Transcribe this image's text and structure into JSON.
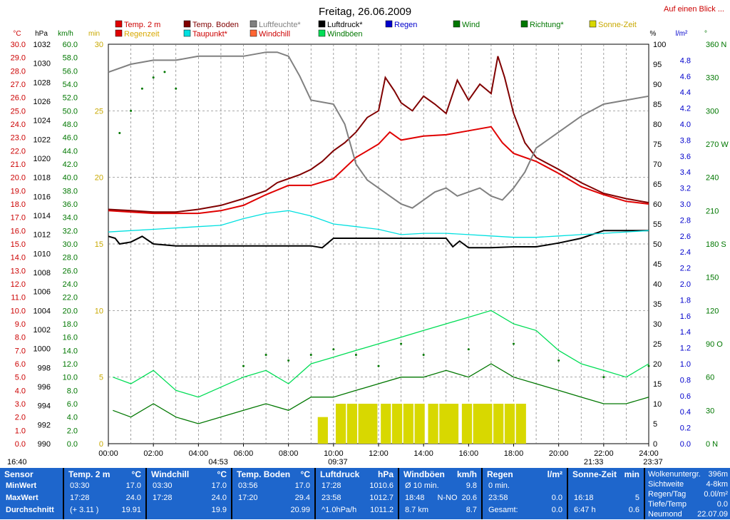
{
  "title": "Freitag, 26.06.2009",
  "link": "Auf einen Blick ...",
  "colors": {
    "temp": "#e00000",
    "boden": "#800000",
    "feuchte": "#808080",
    "druck": "#000000",
    "tau": "#00e0e0",
    "wind": "#007700",
    "boeen": "#00dd55",
    "regen": "#0000cc",
    "sonne": "#d8d800",
    "richtung": "#007700"
  },
  "legend": [
    {
      "label": "Temp. 2 m",
      "color": "#e00000",
      "text_color": "#cc0000"
    },
    {
      "label": "Regenzeit",
      "color": "#e00000",
      "text_color": "#d8a800"
    },
    {
      "label": "Temp. Boden",
      "color": "#800000",
      "text_color": "#800000"
    },
    {
      "label": "Taupunkt*",
      "color": "#00e0e0",
      "text_color": "#cc0000"
    },
    {
      "label": "Luftfeuchte*",
      "color": "#808080",
      "text_color": "#808080"
    },
    {
      "label": "Windchill",
      "color": "#ff6633",
      "text_color": "#cc0000"
    },
    {
      "label": "Luftdruck*",
      "color": "#000000",
      "text_color": "#000000"
    },
    {
      "label": "Windböen",
      "color": "#00dd55",
      "text_color": "#007700"
    },
    {
      "label": "Regen",
      "color": "#0000cc",
      "text_color": "#0000cc"
    },
    {
      "label": "Wind",
      "color": "#007700",
      "text_color": "#007700"
    },
    {
      "label": "Richtung*",
      "color": "#007700",
      "text_color": "#007700"
    },
    {
      "label": "Sonne-Zeit",
      "color": "#d8d800",
      "text_color": "#c8a800"
    }
  ],
  "unit_headers": [
    "°C",
    "hPa",
    "km/h",
    "min",
    "%",
    "l/m²",
    "°"
  ],
  "sun_times": {
    "sunrise": "04:53",
    "sunset": "21:33",
    "moonrise": "09:37",
    "moonset": "23:37",
    "day_start": "16:40"
  },
  "chart_data": {
    "type": "line",
    "x_label_ticks": [
      "00:00",
      "02:00",
      "04:00",
      "06:00",
      "08:00",
      "10:00",
      "12:00",
      "14:00",
      "16:00",
      "18:00",
      "20:00",
      "22:00",
      "24:00"
    ],
    "axes": {
      "temp_c": {
        "range": [
          0,
          30
        ],
        "ticks": [
          "30.0",
          "29.0",
          "28.0",
          "27.0",
          "26.0",
          "25.0",
          "24.0",
          "23.0",
          "22.0",
          "21.0",
          "20.0",
          "19.0",
          "18.0",
          "17.0",
          "16.0",
          "15.0",
          "14.0",
          "13.0",
          "12.0",
          "11.0",
          "10.0",
          "9.0",
          "8.0",
          "7.0",
          "6.0",
          "5.0",
          "4.0",
          "3.0",
          "2.0",
          "1.0",
          "0.0"
        ]
      },
      "pressure_hpa": {
        "range": [
          990,
          1032
        ],
        "ticks": [
          "1032",
          "1030",
          "1028",
          "1026",
          "1024",
          "1022",
          "1020",
          "1018",
          "1016",
          "1014",
          "1012",
          "1010",
          "1008",
          "1006",
          "1004",
          "1002",
          "1000",
          "998",
          "996",
          "994",
          "992",
          "990"
        ]
      },
      "wind_kmh": {
        "range": [
          0,
          60
        ],
        "ticks": [
          "60.0",
          "58.0",
          "56.0",
          "54.0",
          "52.0",
          "50.0",
          "48.0",
          "46.0",
          "44.0",
          "42.0",
          "40.0",
          "38.0",
          "36.0",
          "34.0",
          "32.0",
          "30.0",
          "28.0",
          "26.0",
          "24.0",
          "22.0",
          "20.0",
          "18.0",
          "16.0",
          "14.0",
          "12.0",
          "10.0",
          "8.0",
          "6.0",
          "4.0",
          "2.0",
          "0.0"
        ]
      },
      "sun_min": {
        "range": [
          0,
          30
        ],
        "ticks": [
          "30",
          "25",
          "20",
          "15",
          "10",
          "5",
          "0"
        ]
      },
      "humidity_pct": {
        "range": [
          0,
          100
        ],
        "ticks": [
          "100",
          "95",
          "90",
          "85",
          "80",
          "75",
          "70",
          "65",
          "60",
          "55",
          "50",
          "45",
          "40",
          "35",
          "30",
          "25",
          "20",
          "15",
          "10",
          "5",
          "0"
        ]
      },
      "rain_lm2": {
        "range": [
          0,
          5
        ],
        "ticks": [
          "4.8",
          "4.6",
          "4.4",
          "4.2",
          "4.0",
          "3.8",
          "3.6",
          "3.4",
          "3.2",
          "3.0",
          "2.8",
          "2.6",
          "2.4",
          "2.2",
          "2.0",
          "1.8",
          "1.6",
          "1.4",
          "1.2",
          "1.0",
          "0.8",
          "0.6",
          "0.4",
          "0.2",
          "0.0"
        ]
      },
      "direction_deg": {
        "range": [
          0,
          360
        ],
        "ticks": [
          "360 N",
          "330",
          "300",
          "270 W",
          "240",
          "210",
          "180 S",
          "150",
          "120",
          "90 O",
          "60",
          "30",
          "0 N"
        ]
      }
    },
    "series": [
      {
        "name": "Temp. 2 m",
        "axis": "temp_c",
        "x": [
          0,
          1,
          2,
          3,
          4,
          5,
          6,
          7,
          8,
          9,
          10,
          11,
          12,
          12.5,
          13,
          14,
          15,
          16,
          17,
          17.5,
          18,
          19,
          20,
          21,
          22,
          23,
          24
        ],
        "y": [
          17.5,
          17.4,
          17.3,
          17.3,
          17.3,
          17.5,
          17.9,
          18.7,
          19.4,
          19.4,
          19.9,
          21.5,
          22.5,
          23.4,
          22.8,
          23.1,
          23.2,
          23.5,
          23.8,
          22.6,
          21.8,
          21.2,
          20.3,
          19.3,
          18.7,
          18.2,
          18.0
        ]
      },
      {
        "name": "Temp. Boden",
        "axis": "temp_c",
        "x": [
          0,
          1,
          2,
          3,
          4,
          5,
          6,
          7,
          7.5,
          8,
          8.5,
          9,
          9.5,
          10,
          10.5,
          11,
          11.5,
          12,
          12.3,
          12.7,
          13,
          13.5,
          14,
          14.5,
          15,
          15.5,
          16,
          16.5,
          17,
          17.3,
          17.6,
          18,
          18.5,
          19,
          20,
          21,
          22,
          23,
          24
        ],
        "y": [
          17.6,
          17.5,
          17.4,
          17.4,
          17.6,
          17.9,
          18.4,
          19.0,
          19.6,
          19.9,
          20.2,
          20.6,
          21.2,
          22.0,
          22.6,
          23.4,
          24.5,
          25.0,
          27.5,
          26.5,
          25.6,
          25.0,
          26.1,
          25.5,
          24.8,
          27.3,
          25.8,
          27.0,
          26.3,
          29.1,
          27.5,
          24.8,
          22.6,
          21.5,
          20.6,
          19.6,
          18.8,
          18.4,
          18.1
        ]
      },
      {
        "name": "Luftfeuchte*",
        "axis": "humidity_pct",
        "x": [
          0,
          1,
          2,
          3,
          4,
          5,
          6,
          7,
          7.5,
          8,
          8.5,
          9,
          10,
          10.5,
          11,
          11.5,
          12,
          12.5,
          13,
          13.5,
          14,
          14.5,
          15,
          15.5,
          16,
          16.5,
          17,
          17.5,
          18,
          18.5,
          19,
          20,
          21,
          22,
          23,
          24
        ],
        "y": [
          93,
          95,
          96,
          96,
          97,
          97,
          97,
          98,
          98,
          97,
          92,
          86,
          85,
          80,
          70,
          66,
          64,
          62,
          60,
          59,
          61,
          63,
          64,
          62,
          63,
          64,
          62,
          61,
          64,
          68,
          74,
          78,
          82,
          85,
          86,
          87
        ]
      },
      {
        "name": "Luftdruck*",
        "axis": "pressure_hpa",
        "x": [
          0,
          0.3,
          0.5,
          1,
          1.5,
          2,
          3,
          4,
          5,
          6,
          7,
          8,
          9,
          9.5,
          10,
          12,
          14,
          15,
          15.3,
          15.6,
          16,
          17,
          18,
          19,
          20,
          21,
          22,
          23,
          24
        ],
        "y": [
          1011.8,
          1011.6,
          1011.0,
          1011.2,
          1011.8,
          1011.0,
          1010.8,
          1010.8,
          1010.8,
          1010.8,
          1010.8,
          1010.8,
          1010.8,
          1010.6,
          1011.6,
          1011.6,
          1011.6,
          1011.6,
          1010.7,
          1011.3,
          1010.6,
          1010.6,
          1010.7,
          1010.7,
          1011.1,
          1011.6,
          1012.4,
          1012.4,
          1012.4
        ]
      },
      {
        "name": "Taupunkt*",
        "axis": "temp_c",
        "x": [
          0,
          1,
          2,
          3,
          4,
          5,
          6,
          7,
          8,
          9,
          10,
          11,
          12,
          13,
          14,
          15,
          16,
          17,
          18,
          19,
          20,
          21,
          22,
          23,
          24
        ],
        "y": [
          15.9,
          16.0,
          16.1,
          16.2,
          16.3,
          16.4,
          16.9,
          17.3,
          17.5,
          17.1,
          16.5,
          16.3,
          16.1,
          15.7,
          15.8,
          15.8,
          15.7,
          15.6,
          15.5,
          15.5,
          15.6,
          15.7,
          15.8,
          15.9,
          16.0
        ]
      },
      {
        "name": "Windböen",
        "axis": "wind_kmh",
        "x": [
          0.2,
          1,
          2,
          3,
          4,
          6,
          7,
          8,
          9,
          10,
          11,
          12,
          13,
          14,
          15,
          16,
          17,
          18,
          19,
          20,
          21,
          22,
          23,
          24
        ],
        "y": [
          10,
          9,
          11,
          8,
          7,
          10,
          11,
          9,
          12,
          13,
          14,
          15,
          16,
          17,
          18,
          19,
          20,
          18,
          17,
          14,
          12,
          11,
          10,
          12
        ]
      },
      {
        "name": "Wind",
        "axis": "wind_kmh",
        "x": [
          0.2,
          1,
          2,
          3,
          4,
          6,
          7,
          8,
          9,
          10,
          11,
          12,
          13,
          14,
          15,
          16,
          17,
          18,
          19,
          20,
          21,
          22,
          23,
          24
        ],
        "y": [
          5,
          4,
          6,
          4,
          3,
          5,
          6,
          5,
          7,
          7,
          8,
          9,
          10,
          10,
          11,
          10,
          12,
          10,
          9,
          8,
          7,
          6,
          6,
          7
        ]
      },
      {
        "name": "Richtung*",
        "axis": "direction_deg",
        "x": [
          0.5,
          1,
          1.5,
          2,
          2.5,
          3,
          6,
          7,
          8,
          9,
          10,
          11,
          12,
          13,
          14,
          16,
          18,
          20,
          22,
          24
        ],
        "y": [
          280,
          300,
          320,
          330,
          335,
          320,
          70,
          80,
          75,
          80,
          85,
          80,
          70,
          90,
          80,
          85,
          90,
          75,
          60,
          70
        ]
      }
    ],
    "sun_minutes": {
      "axis": "sun_min",
      "x": [
        9.3,
        10.1,
        10.6,
        11.1,
        11.5,
        12.1,
        12.6,
        13.1,
        13.6,
        14.2,
        14.7,
        15.1,
        15.7,
        16.2,
        16.6,
        17.1,
        17.6,
        18.1
      ],
      "y": [
        2,
        3,
        3,
        3,
        3,
        3,
        3,
        3,
        3,
        3,
        3,
        3,
        3,
        3,
        3,
        3,
        3,
        3
      ]
    }
  },
  "panel": {
    "cols": [
      {
        "header": "Sensor",
        "unit": "",
        "rows": [
          {
            "a": "MinWert",
            "m": "",
            "b": ""
          },
          {
            "a": "MaxWert",
            "m": "",
            "b": ""
          },
          {
            "a": "Durchschnitt",
            "m": "",
            "b": ""
          }
        ]
      },
      {
        "header": "Temp. 2 m",
        "unit": "°C",
        "rows": [
          {
            "a": "03:30",
            "m": "",
            "b": "17.0"
          },
          {
            "a": "17:28",
            "m": "",
            "b": "24.0"
          },
          {
            "a": "(+ 3.11 )",
            "m": "",
            "b": "19.91"
          }
        ]
      },
      {
        "header": "Windchill",
        "unit": "°C",
        "rows": [
          {
            "a": "03:30",
            "m": "",
            "b": "17.0"
          },
          {
            "a": "17:28",
            "m": "",
            "b": "24.0"
          },
          {
            "a": "",
            "m": "",
            "b": "19.9"
          }
        ]
      },
      {
        "header": "Temp. Boden",
        "unit": "°C",
        "rows": [
          {
            "a": "03:56",
            "m": "",
            "b": "17.0"
          },
          {
            "a": "17:20",
            "m": "",
            "b": "29.4"
          },
          {
            "a": "",
            "m": "",
            "b": "20.99"
          }
        ]
      },
      {
        "header": "Luftdruck",
        "unit": "hPa",
        "rows": [
          {
            "a": "17:28",
            "m": "",
            "b": "1010.6"
          },
          {
            "a": "23:58",
            "m": "",
            "b": "1012.7"
          },
          {
            "a": "^1.0hPa/h",
            "m": "",
            "b": "1011.2"
          }
        ]
      },
      {
        "header": "Windböen",
        "unit": "km/h",
        "rows": [
          {
            "a": "Ø 10 min.",
            "m": "",
            "b": "9.8"
          },
          {
            "a": "18:48",
            "m": "N-NO",
            "b": "20.6"
          },
          {
            "a": "8.7 km",
            "m": "",
            "b": "8.7"
          }
        ]
      },
      {
        "header": "Regen",
        "unit": "l/m²",
        "rows": [
          {
            "a": "0 min.",
            "m": "",
            "b": ""
          },
          {
            "a": "23:58",
            "m": "",
            "b": "0.0"
          },
          {
            "a": "Gesamt:",
            "m": "",
            "b": "0.0"
          }
        ]
      },
      {
        "header": "Sonne-Zeit",
        "unit": "min",
        "rows": [
          {
            "a": "",
            "m": "",
            "b": ""
          },
          {
            "a": "16:18",
            "m": "",
            "b": "5"
          },
          {
            "a": "6:47 h",
            "m": "",
            "b": "0.6"
          }
        ]
      }
    ],
    "extra": [
      {
        "k": "Wolkenuntergr.",
        "v": "396m"
      },
      {
        "k": "Sichtweite",
        "v": "4-8km"
      },
      {
        "k": "Regen/Tag",
        "v": "0.0l/m²"
      },
      {
        "k": "Tiefe/Temp",
        "v": "0.0"
      },
      {
        "k": "Neumond",
        "v": "22.07.09"
      }
    ]
  }
}
